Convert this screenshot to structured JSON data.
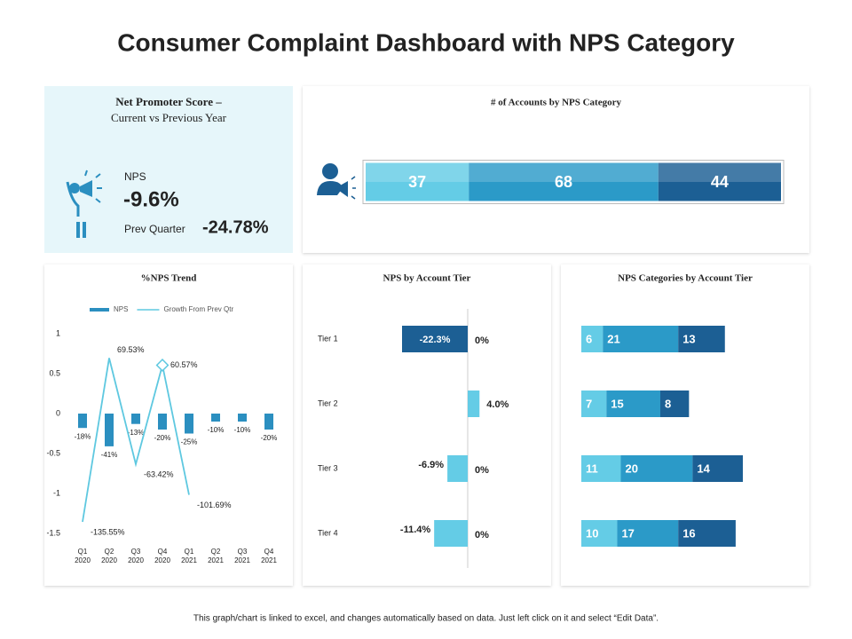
{
  "title": "Consumer Complaint Dashboard with NPS Category",
  "footer": "This graph/chart is linked to excel, and changes automatically based on data. Just left click on it and select “Edit Data”.",
  "kpi": {
    "title": "Net Promoter Score –",
    "subtitle": "Current vs Previous Year",
    "label": "NPS",
    "value": "-9.6%",
    "prev_label": "Prev Quarter",
    "prev_value": "-24.78%"
  },
  "chart_data": [
    {
      "type": "stacked_bar",
      "title": "# of Accounts by NPS Category",
      "series": [
        {
          "color": "#64cce6",
          "values": [
            37
          ]
        },
        {
          "color": "#2b9ac8",
          "values": [
            68
          ]
        },
        {
          "color": "#1c5f94",
          "values": [
            44
          ]
        }
      ]
    },
    {
      "type": "combo",
      "title": "%NPS Trend",
      "categories": [
        "Q1 2020",
        "Q2 2020",
        "Q3 2020",
        "Q4 2020",
        "Q1 2021",
        "Q2 2021",
        "Q3 2021",
        "Q4 2021"
      ],
      "series": [
        {
          "name": "NPS",
          "kind": "bar",
          "color": "#2b8fc0",
          "values": [
            -0.18,
            -0.41,
            -0.13,
            -0.2,
            -0.25,
            -0.1,
            -0.1,
            -0.2
          ],
          "value_labels": [
            "-18%",
            "-41%",
            "-13%",
            "-20%",
            "-25%",
            "-10%",
            "-10%",
            "-20%"
          ]
        },
        {
          "name": "Growth From Prev Qtr",
          "kind": "line",
          "color": "#5ec8e0",
          "values": [
            -1.3555,
            0.6953,
            -0.6342,
            0.6057,
            -1.0169,
            null,
            null,
            null
          ],
          "value_labels": [
            "-135.55%",
            "69.53%",
            "-63.42%",
            "60.57%",
            "-101.69%",
            null,
            null,
            null
          ]
        }
      ],
      "ylim": [
        -1.5,
        1
      ],
      "yticks": [
        1,
        0.5,
        0,
        -0.5,
        -1,
        -1.5
      ],
      "grid": false
    },
    {
      "type": "hbar",
      "title": "NPS by Account Tier",
      "categories": [
        "Tier 1",
        "Tier 2",
        "Tier 3",
        "Tier 4"
      ],
      "series": [
        {
          "colors": [
            "#1c5f94",
            "#64cce6",
            "#64cce6",
            "#64cce6"
          ],
          "values": [
            -22.3,
            4.0,
            -6.9,
            -11.4
          ],
          "value_labels": [
            "-22.3%",
            "4.0%",
            "-6.9%",
            "-11.4%"
          ]
        },
        {
          "colors": [
            "#64cce6",
            "#64cce6",
            "#64cce6",
            "#64cce6"
          ],
          "values": [
            0,
            null,
            0,
            0
          ],
          "value_labels": [
            "0%",
            null,
            "0%",
            "0%"
          ]
        }
      ]
    },
    {
      "type": "stacked_bar",
      "title": "NPS Categories by Account Tier",
      "series": [
        {
          "color": "#64cce6",
          "values": [
            6,
            7,
            11,
            10
          ]
        },
        {
          "color": "#2b9ac8",
          "values": [
            21,
            15,
            20,
            17
          ]
        },
        {
          "color": "#1c5f94",
          "values": [
            13,
            8,
            14,
            16
          ]
        }
      ]
    }
  ]
}
